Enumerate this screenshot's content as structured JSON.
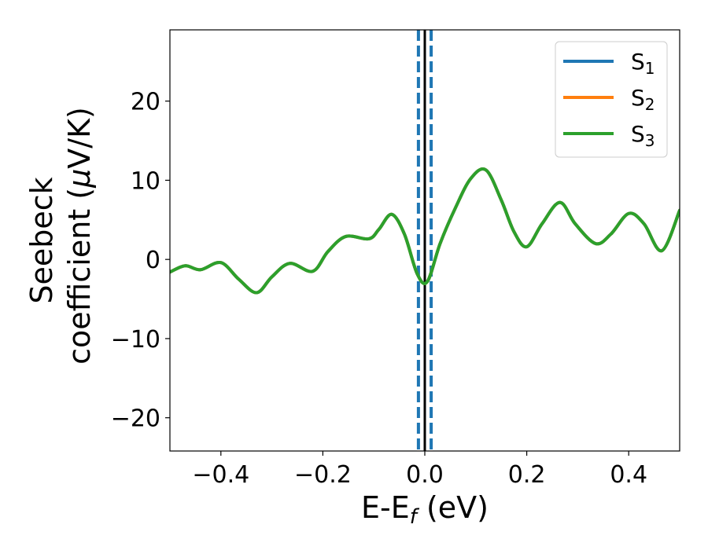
{
  "chart_data": {
    "type": "line",
    "xlabel": "E-E",
    "xlabel_sub": "f",
    "xlabel_unit": " (eV)",
    "ylabel_line1": "Seebeck",
    "ylabel_line2": "coefficient  (",
    "ylabel_mu": "μ",
    "ylabel_unit": "V/K)",
    "xlim": [
      -0.5,
      0.5
    ],
    "ylim": [
      -24.2,
      29.0
    ],
    "x_ticks": [
      -0.4,
      -0.2,
      0.0,
      0.2,
      0.4
    ],
    "x_tick_labels": [
      "−0.4",
      "−0.2",
      "0.0",
      "0.2",
      "0.4"
    ],
    "y_ticks": [
      -20,
      -10,
      0,
      10,
      20
    ],
    "y_tick_labels": [
      "−20",
      "−10",
      "0",
      "10",
      "20"
    ],
    "grid": false,
    "legend_position": "top-right",
    "vlines": [
      {
        "x": 0.0,
        "style": "solid",
        "color": "#000000"
      },
      {
        "x": -0.0125,
        "style": "dashed",
        "color": "#1f77b4"
      },
      {
        "x": 0.0125,
        "style": "dashed",
        "color": "#1f77b4"
      }
    ],
    "series": [
      {
        "name": "S",
        "sub": "1",
        "color": "#1f77b4",
        "x": [
          -0.5,
          -0.47,
          -0.44,
          -0.4,
          -0.365,
          -0.33,
          -0.3,
          -0.265,
          -0.22,
          -0.19,
          -0.155,
          -0.11,
          -0.09,
          -0.065,
          -0.04,
          -0.015,
          0.005,
          0.03,
          0.06,
          0.09,
          0.12,
          0.15,
          0.175,
          0.2,
          0.23,
          0.265,
          0.295,
          0.335,
          0.365,
          0.4,
          0.43,
          0.465,
          0.5
        ],
        "y": [
          -1.6,
          -0.8,
          -1.3,
          -0.4,
          -2.5,
          -4.2,
          -2.2,
          -0.5,
          -1.5,
          1.0,
          2.9,
          2.6,
          3.8,
          5.7,
          3.2,
          -1.8,
          -2.8,
          2.0,
          6.5,
          10.2,
          11.3,
          7.5,
          3.5,
          1.6,
          4.5,
          7.2,
          4.5,
          2.0,
          3.2,
          5.8,
          4.5,
          1.1,
          6.2
        ]
      },
      {
        "name": "S",
        "sub": "2",
        "color": "#ff7f0e",
        "x": [
          -0.5,
          -0.47,
          -0.44,
          -0.4,
          -0.365,
          -0.33,
          -0.3,
          -0.265,
          -0.22,
          -0.19,
          -0.155,
          -0.11,
          -0.09,
          -0.065,
          -0.04,
          -0.015,
          0.005,
          0.03,
          0.06,
          0.09,
          0.12,
          0.15,
          0.175,
          0.2,
          0.23,
          0.265,
          0.295,
          0.335,
          0.365,
          0.4,
          0.43,
          0.465,
          0.5
        ],
        "y": [
          -1.6,
          -0.8,
          -1.3,
          -0.4,
          -2.5,
          -4.2,
          -2.2,
          -0.5,
          -1.5,
          1.0,
          2.9,
          2.6,
          3.8,
          5.7,
          3.2,
          -1.8,
          -2.8,
          2.0,
          6.5,
          10.2,
          11.3,
          7.5,
          3.5,
          1.6,
          4.5,
          7.2,
          4.5,
          2.0,
          3.2,
          5.8,
          4.5,
          1.1,
          6.2
        ]
      },
      {
        "name": "S",
        "sub": "3",
        "color": "#2ca02c",
        "x": [
          -0.5,
          -0.47,
          -0.44,
          -0.4,
          -0.365,
          -0.33,
          -0.3,
          -0.265,
          -0.22,
          -0.19,
          -0.155,
          -0.11,
          -0.09,
          -0.065,
          -0.04,
          -0.015,
          0.005,
          0.03,
          0.06,
          0.09,
          0.12,
          0.15,
          0.175,
          0.2,
          0.23,
          0.265,
          0.295,
          0.335,
          0.365,
          0.4,
          0.43,
          0.465,
          0.5
        ],
        "y": [
          -1.6,
          -0.8,
          -1.3,
          -0.4,
          -2.5,
          -4.2,
          -2.2,
          -0.5,
          -1.5,
          1.0,
          2.9,
          2.6,
          3.8,
          5.7,
          3.2,
          -1.8,
          -2.8,
          2.0,
          6.5,
          10.2,
          11.3,
          7.5,
          3.5,
          1.6,
          4.5,
          7.2,
          4.5,
          2.0,
          3.2,
          5.8,
          4.5,
          1.1,
          6.2
        ]
      }
    ]
  }
}
